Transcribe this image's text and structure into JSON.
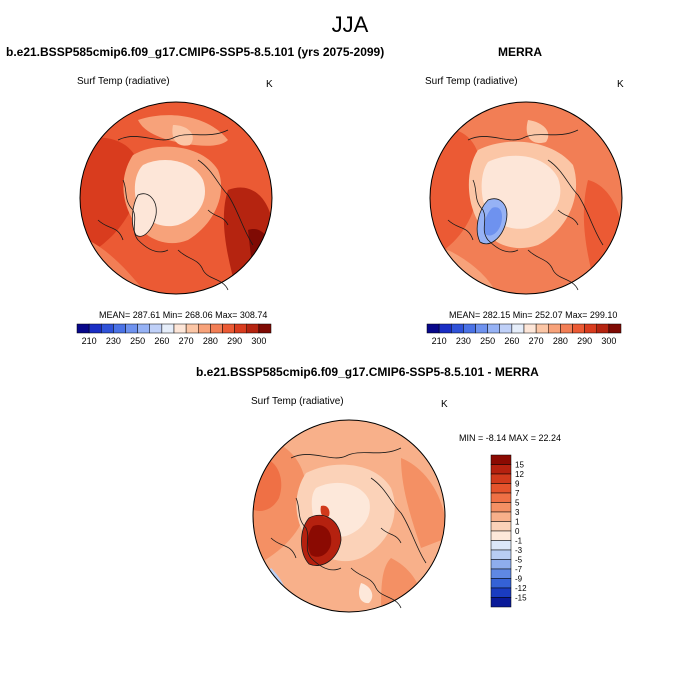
{
  "figure": {
    "season": "JJA",
    "panel_left_title": "b.e21.BSSP585cmip6.f09_g17.CMIP6-SSP5-8.5.101 (yrs 2075-2099)",
    "panel_right_title": "MERRA",
    "panel_diff_title": "b.e21.BSSP585cmip6.f09_g17.CMIP6-SSP5-8.5.101 - MERRA"
  },
  "chart_data": [
    {
      "type": "heatmap",
      "subtype": "polar-stereographic map (Northern Hemisphere)",
      "variable": "Surf Temp (radiative)",
      "units": "K",
      "stats": {
        "label": "MEAN= 287.61  Min= 268.06  Max= 308.74",
        "mean": 287.61,
        "min": 268.06,
        "max": 308.74
      },
      "colorbar": {
        "orientation": "horizontal",
        "levels": [
          210,
          220,
          230,
          240,
          250,
          255,
          260,
          265,
          270,
          275,
          280,
          285,
          290,
          295,
          300
        ],
        "labels": [
          "210",
          "230",
          "250",
          "260",
          "270",
          "280",
          "290",
          "300"
        ],
        "colors": [
          "#08088a",
          "#1a2ec4",
          "#2f52d8",
          "#4a72e6",
          "#6e92ef",
          "#96b2f5",
          "#bfd0f8",
          "#e6eefa",
          "#fde6d8",
          "#fbc6a6",
          "#f7a27a",
          "#f27e55",
          "#eb5a34",
          "#d93c1e",
          "#b52410",
          "#7f0a04"
        ]
      }
    },
    {
      "type": "heatmap",
      "subtype": "polar-stereographic map (Northern Hemisphere)",
      "variable": "Surf Temp (radiative)",
      "units": "K",
      "stats": {
        "label": "MEAN= 282.15  Min= 252.07  Max= 299.10",
        "mean": 282.15,
        "min": 252.07,
        "max": 299.1
      },
      "colorbar": {
        "orientation": "horizontal",
        "levels": [
          210,
          220,
          230,
          240,
          250,
          255,
          260,
          265,
          270,
          275,
          280,
          285,
          290,
          295,
          300
        ],
        "labels": [
          "210",
          "230",
          "250",
          "260",
          "270",
          "280",
          "290",
          "300"
        ],
        "colors": [
          "#08088a",
          "#1a2ec4",
          "#2f52d8",
          "#4a72e6",
          "#6e92ef",
          "#96b2f5",
          "#bfd0f8",
          "#e6eefa",
          "#fde6d8",
          "#fbc6a6",
          "#f7a27a",
          "#f27e55",
          "#eb5a34",
          "#d93c1e",
          "#b52410",
          "#7f0a04"
        ]
      }
    },
    {
      "type": "heatmap",
      "subtype": "polar-stereographic map (Northern Hemisphere), difference",
      "variable": "Surf Temp (radiative)",
      "units": "K",
      "stats": {
        "label": "MIN =  -8.14 MAX =  22.24",
        "min": -8.14,
        "max": 22.24
      },
      "colorbar": {
        "orientation": "vertical",
        "labels_top_to_bottom": [
          "15",
          "12",
          "9",
          "7",
          "5",
          "3",
          "1",
          "0",
          "-1",
          "-3",
          "-5",
          "-7",
          "-9",
          "-12",
          "-15"
        ],
        "colors_top_to_bottom": [
          "#8b0a02",
          "#b5210f",
          "#d13a1c",
          "#e5532c",
          "#ef7045",
          "#f49064",
          "#f8b08a",
          "#fbd2b8",
          "#fde8da",
          "#dce8f8",
          "#b8cdf3",
          "#8eaded",
          "#5f88e3",
          "#3562d6",
          "#1a3cc0",
          "#0a1a98"
        ]
      }
    }
  ]
}
